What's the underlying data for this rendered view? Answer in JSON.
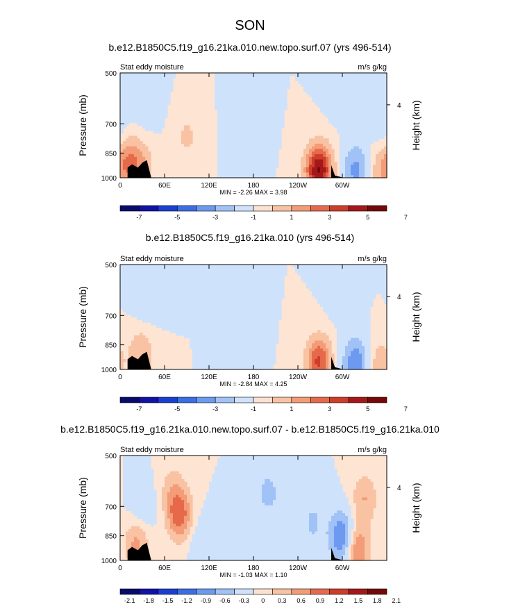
{
  "page": {
    "title": "SON"
  },
  "chart_data": [
    {
      "type": "heatmap",
      "title": "b.e12.B1850C5.f19_g16.21ka.010.new.topo.surf.07 (yrs 496-514)",
      "left_label": "Stat eddy moisture",
      "units": "m/s g/kg",
      "ylabel": "Pressure (mb)",
      "ylabel_right": "Height (km)",
      "y_ticks": [
        "500",
        "700",
        "850",
        "1000"
      ],
      "y_right_ticks": [
        "4"
      ],
      "x_ticks": [
        "0",
        "60E",
        "120E",
        "180",
        "120W",
        "60W"
      ],
      "xlim": [
        0,
        360
      ],
      "ylim": [
        1000,
        500
      ],
      "stats": "MIN =  -2.26  MAX =  3.98",
      "colorbar_labels": [
        "-7",
        "-5",
        "-3",
        "-1",
        "1",
        "3",
        "5",
        "7"
      ],
      "blobs": [
        {
          "lon": 30,
          "p": 930,
          "v": 1.6
        },
        {
          "lon": 12,
          "p": 900,
          "v": 2.6
        },
        {
          "lon": 90,
          "p": 760,
          "v": 1.2
        },
        {
          "lon": 265,
          "p": 950,
          "v": 3.9
        },
        {
          "lon": 273,
          "p": 950,
          "v": 2.5
        },
        {
          "lon": 352,
          "p": 960,
          "v": 1.6
        },
        {
          "lon": 35,
          "p": 600,
          "v": -0.9
        },
        {
          "lon": 170,
          "p": 720,
          "v": -1.0
        },
        {
          "lon": 300,
          "p": 560,
          "v": -1.0
        },
        {
          "lon": 318,
          "p": 950,
          "v": -2.3
        },
        {
          "lon": 355,
          "p": 700,
          "v": -0.8
        }
      ]
    },
    {
      "type": "heatmap",
      "title": "b.e12.B1850C5.f19_g16.21ka.010 (yrs 496-514)",
      "left_label": "Stat eddy moisture",
      "units": "m/s g/kg",
      "ylabel": "Pressure (mb)",
      "ylabel_right": "Height (km)",
      "y_ticks": [
        "500",
        "700",
        "850",
        "1000"
      ],
      "y_right_ticks": [
        "4"
      ],
      "x_ticks": [
        "0",
        "60E",
        "120E",
        "180",
        "120W",
        "60W"
      ],
      "xlim": [
        0,
        360
      ],
      "ylim": [
        1000,
        500
      ],
      "stats": "MIN =  -2.84  MAX =  4.25",
      "colorbar_labels": [
        "-7",
        "-5",
        "-3",
        "-1",
        "1",
        "3",
        "5",
        "7"
      ],
      "blobs": [
        {
          "lon": 28,
          "p": 900,
          "v": 2.0
        },
        {
          "lon": 268,
          "p": 950,
          "v": 4.2
        },
        {
          "lon": 350,
          "p": 960,
          "v": 1.6
        },
        {
          "lon": 35,
          "p": 620,
          "v": -1.0
        },
        {
          "lon": 160,
          "p": 720,
          "v": -1.0
        },
        {
          "lon": 300,
          "p": 600,
          "v": -1.0
        },
        {
          "lon": 318,
          "p": 960,
          "v": -2.8
        }
      ]
    },
    {
      "type": "heatmap",
      "title": "b.e12.B1850C5.f19_g16.21ka.010.new.topo.surf.07 - b.e12.B1850C5.f19_g16.21ka.010",
      "left_label": "Stat eddy moisture",
      "units": "m/s g/kg",
      "ylabel": "Pressure (mb)",
      "ylabel_right": "Height (km)",
      "y_ticks": [
        "500",
        "700",
        "850",
        "1000"
      ],
      "y_right_ticks": [
        "4"
      ],
      "x_ticks": [
        "0",
        "60E",
        "120E",
        "180",
        "120W",
        "60W"
      ],
      "xlim": [
        0,
        360
      ],
      "ylim": [
        1000,
        500
      ],
      "stats": "MIN =  -1.03  MAX =  1.10",
      "colorbar_labels": [
        "-2.1",
        "-1.8",
        "-1.5",
        "-1.2",
        "-0.9",
        "-0.6",
        "-0.3",
        "0",
        "0.3",
        "0.6",
        "0.9",
        "1.2",
        "1.5",
        "1.8",
        "2.1"
      ],
      "blobs": [
        {
          "lon": 80,
          "p": 740,
          "v": 1.1
        },
        {
          "lon": 70,
          "p": 620,
          "v": 0.4
        },
        {
          "lon": 320,
          "p": 930,
          "v": 1.0
        },
        {
          "lon": 330,
          "p": 660,
          "v": 0.6
        },
        {
          "lon": 22,
          "p": 900,
          "v": 0.7
        },
        {
          "lon": 30,
          "p": 700,
          "v": -0.3
        },
        {
          "lon": 200,
          "p": 640,
          "v": -0.4
        },
        {
          "lon": 260,
          "p": 780,
          "v": -0.35
        },
        {
          "lon": 300,
          "p": 860,
          "v": -1.0
        },
        {
          "lon": 110,
          "p": 900,
          "v": -0.3
        }
      ]
    }
  ]
}
